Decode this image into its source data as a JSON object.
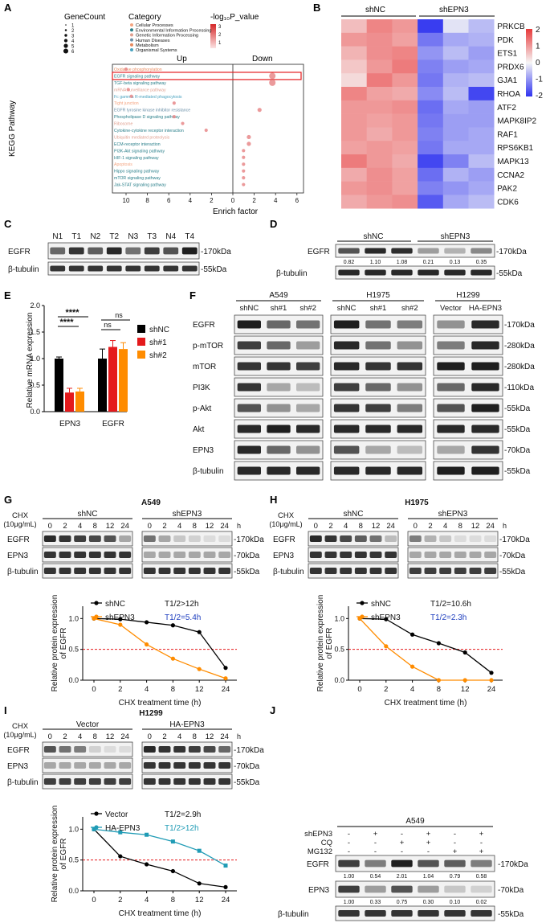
{
  "panels": [
    "A",
    "B",
    "C",
    "D",
    "E",
    "F",
    "G",
    "H",
    "I",
    "J"
  ],
  "kegg": {
    "ylabel": "KEGG Pathway",
    "xlabel": "Enrich factor",
    "up": "Up",
    "down": "Down",
    "legend_genecount_title": "GeneCount",
    "genecount_levels": [
      "1",
      "2",
      "3",
      "4",
      "5",
      "6"
    ],
    "legend_category_title": "Category",
    "categories": [
      {
        "name": "Cellular Processes",
        "color": "#f4a582"
      },
      {
        "name": "Environmental Information Processing",
        "color": "#2a7f8a"
      },
      {
        "name": "Genetic Information Processing",
        "color": "#e0a090"
      },
      {
        "name": "Human Diseases",
        "color": "#6a8fa8"
      },
      {
        "name": "Metabolism",
        "color": "#e88a5e"
      },
      {
        "name": "Organismal Systems",
        "color": "#4aa3c0"
      }
    ],
    "legend_pvalue_title": "-log₁₀P_value",
    "pvalue_ticks": [
      "3",
      "2",
      "1"
    ],
    "x_ticks": [
      "10",
      "8",
      "6",
      "4",
      "2",
      "0",
      "2",
      "4",
      "6"
    ],
    "pathways": [
      {
        "name": "Oxidative phosphorylation",
        "color": "#e88a5e",
        "x": -10
      },
      {
        "name": "EGFR signaling pathway",
        "color": "#2a7f8a",
        "x": 3.7
      },
      {
        "name": "TGF-beta signaling pathway",
        "color": "#2a7f8a",
        "x": 3.7
      },
      {
        "name": "mRNA surveillance pathway",
        "color": "#e0a090",
        "x": -9.8
      },
      {
        "name": "Fc gamma R-mediated phagocytosis",
        "color": "#4aa3c0",
        "x": -9.5
      },
      {
        "name": "Tight junction",
        "color": "#f4a582",
        "x": -5.5
      },
      {
        "name": "EGFR tyrosine kinase inhibitor resistance",
        "color": "#6a8fa8",
        "x": 2.5
      },
      {
        "name": "Phospholipase D signaling pathway",
        "color": "#2a7f8a",
        "x": -5.5
      },
      {
        "name": "Ribosome",
        "color": "#e0a090",
        "x": -4.7
      },
      {
        "name": "Cytokine-cytokine receptor interaction",
        "color": "#2a7f8a",
        "x": -2.5
      },
      {
        "name": "Ubiquitin mediated proteolysis",
        "color": "#e0a090",
        "x": 1.5
      },
      {
        "name": "ECM-receptor interaction",
        "color": "#2a7f8a",
        "x": 1.5
      },
      {
        "name": "PI3K-Akt signaling pathway",
        "color": "#2a7f8a",
        "x": 1.0
      },
      {
        "name": "HIF-1 signaling pathway",
        "color": "#2a7f8a",
        "x": 1.0
      },
      {
        "name": "Apoptosis",
        "color": "#f4a582",
        "x": 1.0
      },
      {
        "name": "Hippo signaling pathway",
        "color": "#2a7f8a",
        "x": 1.0
      },
      {
        "name": "mTOR signaling pathway",
        "color": "#2a7f8a",
        "x": 1.0
      },
      {
        "name": "Jak-STAT signaling pathway",
        "color": "#2a7f8a",
        "x": 1.0
      }
    ]
  },
  "heatmap": {
    "group1": "shNC",
    "group2": "shEPN3",
    "genes": [
      "PRKCB",
      "PDK",
      "ETS1",
      "PRDX6",
      "GJA1",
      "RHOA",
      "ATF2",
      "MAPK8IP2",
      "RAF1",
      "RPS6KB1",
      "MAPK13",
      "CCNA2",
      "PAK2",
      "CDK6"
    ],
    "values": [
      [
        0.6,
        1.2,
        1.0,
        -1.9,
        -0.2,
        -0.6
      ],
      [
        1.0,
        1.1,
        0.9,
        -1.3,
        -0.8,
        -0.7
      ],
      [
        0.7,
        1.1,
        1.2,
        -1.0,
        -0.6,
        -0.9
      ],
      [
        0.5,
        1.0,
        1.3,
        -1.2,
        -0.9,
        -0.8
      ],
      [
        0.3,
        1.3,
        1.0,
        -1.3,
        -0.7,
        -0.6
      ],
      [
        1.2,
        0.9,
        0.8,
        -1.1,
        -0.6,
        -1.8
      ],
      [
        1.0,
        1.0,
        1.1,
        -1.4,
        -0.8,
        -0.9
      ],
      [
        1.0,
        0.9,
        1.0,
        -1.3,
        -0.9,
        -0.9
      ],
      [
        1.0,
        0.8,
        1.0,
        -1.2,
        -0.9,
        -0.8
      ],
      [
        0.9,
        1.0,
        0.9,
        -1.3,
        -0.8,
        -0.8
      ],
      [
        1.3,
        1.0,
        0.8,
        -1.8,
        -1.2,
        -0.6
      ],
      [
        0.8,
        1.1,
        0.9,
        -1.4,
        -0.7,
        -0.9
      ],
      [
        1.0,
        1.1,
        0.9,
        -1.2,
        -1.0,
        -0.8
      ],
      [
        0.8,
        1.0,
        1.1,
        -1.6,
        -0.8,
        -0.6
      ]
    ],
    "scale_ticks": [
      "2",
      "1",
      "0",
      "-1",
      "-2"
    ]
  },
  "panelC": {
    "lanes": [
      "N1",
      "T1",
      "N2",
      "T2",
      "N3",
      "T3",
      "N4",
      "T4"
    ],
    "rows": [
      "EGFR",
      "β-tubulin"
    ],
    "kda": [
      "-170kDa",
      "-55kDa"
    ]
  },
  "panelD": {
    "groups": [
      "shNC",
      "shEPN3"
    ],
    "rows": [
      "EGFR",
      "β-tubulin"
    ],
    "kda": [
      "-170kDa",
      "-55kDa"
    ],
    "quant": [
      "0.82",
      "1.10",
      "1.08",
      "0.21",
      "0.13",
      "0.35"
    ]
  },
  "panelE": {
    "ylabel": "Relative mRNA expression",
    "categories": [
      "EPN3",
      "EGFR"
    ],
    "legend": [
      "shNC",
      "sh#1",
      "sh#2"
    ],
    "colors": [
      "#000000",
      "#e41a1c",
      "#ff8c00"
    ],
    "sig": [
      "****",
      "****",
      "ns",
      "ns"
    ],
    "chart_data": {
      "type": "bar",
      "categories": [
        "EPN3",
        "EGFR"
      ],
      "series": [
        {
          "name": "shNC",
          "values": [
            1.0,
            1.0
          ]
        },
        {
          "name": "sh#1",
          "values": [
            0.36,
            1.22
          ]
        },
        {
          "name": "sh#2",
          "values": [
            0.38,
            1.18
          ]
        }
      ],
      "errors": [
        [
          0.03,
          0.18
        ],
        [
          0.08,
          0.12
        ],
        [
          0.06,
          0.12
        ]
      ],
      "yticks": [
        "0.0",
        "0.5",
        "1.0",
        "1.5",
        "2.0"
      ],
      "ylim": [
        0,
        2.0
      ]
    }
  },
  "panelF": {
    "sections": [
      {
        "title": "A549",
        "lanes": [
          "shNC",
          "sh#1",
          "sh#2"
        ]
      },
      {
        "title": "H1975",
        "lanes": [
          "shNC",
          "sh#1",
          "sh#2"
        ]
      },
      {
        "title": "H1299",
        "lanes": [
          "Vector",
          "HA-EPN3"
        ]
      }
    ],
    "rows": [
      "EGFR",
      "p-mTOR",
      "mTOR",
      "PI3K",
      "p-Akt",
      "Akt",
      "EPN3",
      "β-tubulin"
    ],
    "kda": [
      "-170kDa",
      "-280kDa",
      "-280kDa",
      "-110kDa",
      "-55kDa",
      "-55kDa",
      "-70kDa",
      "-55kDa"
    ]
  },
  "panelG": {
    "title": "A549",
    "chx": "CHX",
    "chx_conc": "(10μg/mL)",
    "group1": "shNC",
    "group2": "shEPN3",
    "times": [
      "0",
      "2",
      "4",
      "8",
      "12",
      "24"
    ],
    "h": "h",
    "rows": [
      "EGFR",
      "EPN3",
      "β-tubulin"
    ],
    "kda": [
      "-170kDa",
      "-70kDa",
      "-55kDa"
    ],
    "chart_data": {
      "type": "line",
      "xlabel": "CHX treatment time (h)",
      "ylabel": "Relative protein expression of EGFR",
      "x": [
        "0",
        "2",
        "4",
        "8",
        "12",
        "24"
      ],
      "yticks": [
        "0.0",
        "0.5",
        "1.0"
      ],
      "ylim": [
        0,
        1.2
      ],
      "threshold": 0.5,
      "series": [
        {
          "name": "shNC",
          "values": [
            1.0,
            0.99,
            0.94,
            0.89,
            0.78,
            0.2
          ],
          "color": "#000000",
          "t_half": "T1/2>12h"
        },
        {
          "name": "shEPN3",
          "values": [
            1.0,
            0.9,
            0.58,
            0.35,
            0.18,
            0.03
          ],
          "color": "#ff8c00",
          "t_half": "T1/2=5.4h"
        }
      ]
    }
  },
  "panelH": {
    "title": "H1975",
    "chx": "CHX",
    "chx_conc": "(10μg/mL)",
    "group1": "shNC",
    "group2": "shEPN3",
    "times": [
      "0",
      "2",
      "4",
      "8",
      "12",
      "24"
    ],
    "h": "h",
    "rows": [
      "EGFR",
      "EPN3",
      "β-tubulin"
    ],
    "kda": [
      "-170kDa",
      "-70kDa",
      "-55kDa"
    ],
    "chart_data": {
      "type": "line",
      "xlabel": "CHX treatment time (h)",
      "ylabel": "Relative protein expression of EGFR",
      "x": [
        "0",
        "2",
        "4",
        "8",
        "12",
        "24"
      ],
      "yticks": [
        "0.0",
        "0.5",
        "1.0"
      ],
      "ylim": [
        0,
        1.2
      ],
      "threshold": 0.5,
      "series": [
        {
          "name": "shNC",
          "values": [
            1.0,
            0.99,
            0.74,
            0.6,
            0.45,
            0.12
          ],
          "color": "#000000",
          "t_half": "T1/2=10.6h"
        },
        {
          "name": "shEPN3",
          "values": [
            1.0,
            0.55,
            0.22,
            0.0,
            0.0,
            0.0
          ],
          "color": "#ff8c00",
          "t_half": "T1/2=2.3h"
        }
      ]
    }
  },
  "panelI": {
    "title": "H1299",
    "chx": "CHX",
    "chx_conc": "(10μg/mL)",
    "group1": "Vector",
    "group2": "HA-EPN3",
    "times": [
      "0",
      "2",
      "4",
      "8",
      "12",
      "24"
    ],
    "h": "h",
    "rows": [
      "EGFR",
      "EPN3",
      "β-tubulin"
    ],
    "kda": [
      "-170kDa",
      "-70kDa",
      "-55kDa"
    ],
    "chart_data": {
      "type": "line",
      "xlabel": "CHX treatment time (h)",
      "ylabel": "Relative protein expression of EGFR",
      "x": [
        "0",
        "2",
        "4",
        "8",
        "12",
        "24"
      ],
      "yticks": [
        "0.0",
        "0.5",
        "1.0"
      ],
      "ylim": [
        0,
        1.2
      ],
      "threshold": 0.5,
      "series": [
        {
          "name": "Vector",
          "values": [
            1.0,
            0.56,
            0.43,
            0.32,
            0.12,
            0.06
          ],
          "color": "#000000",
          "t_half": "T1/2=2.9h"
        },
        {
          "name": "HA-EPN3",
          "values": [
            1.0,
            0.95,
            0.91,
            0.8,
            0.65,
            0.41
          ],
          "color": "#1f9bb5",
          "t_half": "T1/2>12h"
        }
      ]
    }
  },
  "panelJ": {
    "title": "A549",
    "treatments": [
      "shEPN3",
      "CQ",
      "MG132"
    ],
    "signs": [
      [
        "-",
        "+",
        "-",
        "+",
        "-",
        "+"
      ],
      [
        "-",
        "-",
        "+",
        "+",
        "-",
        "-"
      ],
      [
        "-",
        "-",
        "-",
        "-",
        "+",
        "+"
      ]
    ],
    "rows": [
      "EGFR",
      "EPN3",
      "β-tubulin"
    ],
    "kda": [
      "-170kDa",
      "-70kDa",
      "-55kDa"
    ],
    "quant_egfr": [
      "1.00",
      "0.54",
      "2.01",
      "1.04",
      "0.79",
      "0.58"
    ],
    "quant_epn3": [
      "1.00",
      "0.33",
      "0.75",
      "0.30",
      "0.10",
      "0.02"
    ]
  },
  "bands": {
    "C": [
      [
        0.6,
        0.85,
        0.65,
        0.9,
        0.55,
        0.8,
        0.7,
        0.95
      ],
      [
        0.85,
        0.85,
        0.85,
        0.85,
        0.85,
        0.85,
        0.85,
        0.85
      ]
    ],
    "D": [
      [
        0.7,
        0.9,
        0.88,
        0.35,
        0.25,
        0.45
      ],
      [
        0.9,
        0.9,
        0.9,
        0.9,
        0.9,
        0.9
      ]
    ],
    "F": [
      [
        [
          0.95,
          0.6,
          0.55
        ],
        [
          0.95,
          0.55,
          0.5
        ],
        [
          0.4,
          0.9
        ]
      ],
      [
        [
          0.8,
          0.6,
          0.35
        ],
        [
          0.9,
          0.55,
          0.4
        ],
        [
          0.5,
          0.9
        ]
      ],
      [
        [
          0.85,
          0.85,
          0.8
        ],
        [
          0.9,
          0.85,
          0.85
        ],
        [
          0.95,
          0.95
        ]
      ],
      [
        [
          0.85,
          0.3,
          0.2
        ],
        [
          0.8,
          0.6,
          0.4
        ],
        [
          0.6,
          0.9
        ]
      ],
      [
        [
          0.7,
          0.4,
          0.3
        ],
        [
          0.85,
          0.8,
          0.5
        ],
        [
          0.7,
          0.95
        ]
      ],
      [
        [
          0.9,
          0.95,
          0.9
        ],
        [
          0.9,
          0.9,
          0.9
        ],
        [
          0.9,
          0.9
        ]
      ],
      [
        [
          0.9,
          0.6,
          0.4
        ],
        [
          0.7,
          0.3,
          0.2
        ],
        [
          0.3,
          0.85
        ]
      ],
      [
        [
          0.9,
          0.9,
          0.9
        ],
        [
          0.9,
          0.9,
          0.9
        ],
        [
          0.95,
          0.95
        ]
      ]
    ],
    "G": [
      [
        [
          0.9,
          0.85,
          0.8,
          0.75,
          0.7,
          0.3
        ],
        [
          0.55,
          0.3,
          0.15,
          0.1,
          0.05,
          0.05
        ]
      ],
      [
        [
          0.85,
          0.85,
          0.85,
          0.85,
          0.85,
          0.85
        ],
        [
          0.3,
          0.3,
          0.3,
          0.3,
          0.3,
          0.3
        ]
      ],
      [
        [
          0.85,
          0.85,
          0.85,
          0.85,
          0.85,
          0.85
        ],
        [
          0.85,
          0.85,
          0.85,
          0.85,
          0.85,
          0.85
        ]
      ]
    ],
    "H": [
      [
        [
          0.9,
          0.85,
          0.75,
          0.65,
          0.55,
          0.2
        ],
        [
          0.5,
          0.25,
          0.15,
          0.05,
          0.05,
          0.05
        ]
      ],
      [
        [
          0.85,
          0.85,
          0.85,
          0.85,
          0.85,
          0.85
        ],
        [
          0.3,
          0.3,
          0.3,
          0.3,
          0.3,
          0.3
        ]
      ],
      [
        [
          0.85,
          0.85,
          0.85,
          0.85,
          0.85,
          0.85
        ],
        [
          0.8,
          0.8,
          0.8,
          0.8,
          0.8,
          0.8
        ]
      ]
    ],
    "I": [
      [
        [
          0.7,
          0.55,
          0.5,
          0.1,
          0.05,
          0.05
        ],
        [
          0.9,
          0.85,
          0.85,
          0.8,
          0.75,
          0.6
        ]
      ],
      [
        [
          0.3,
          0.3,
          0.3,
          0.3,
          0.3,
          0.3
        ],
        [
          0.85,
          0.85,
          0.85,
          0.85,
          0.85,
          0.85
        ]
      ],
      [
        [
          0.8,
          0.8,
          0.8,
          0.8,
          0.8,
          0.8
        ],
        [
          0.85,
          0.85,
          0.85,
          0.85,
          0.85,
          0.85
        ]
      ]
    ],
    "J": [
      [
        0.8,
        0.5,
        0.95,
        0.7,
        0.65,
        0.5
      ],
      [
        0.8,
        0.35,
        0.7,
        0.35,
        0.15,
        0.1
      ],
      [
        0.85,
        0.85,
        0.85,
        0.85,
        0.85,
        0.85
      ]
    ]
  }
}
